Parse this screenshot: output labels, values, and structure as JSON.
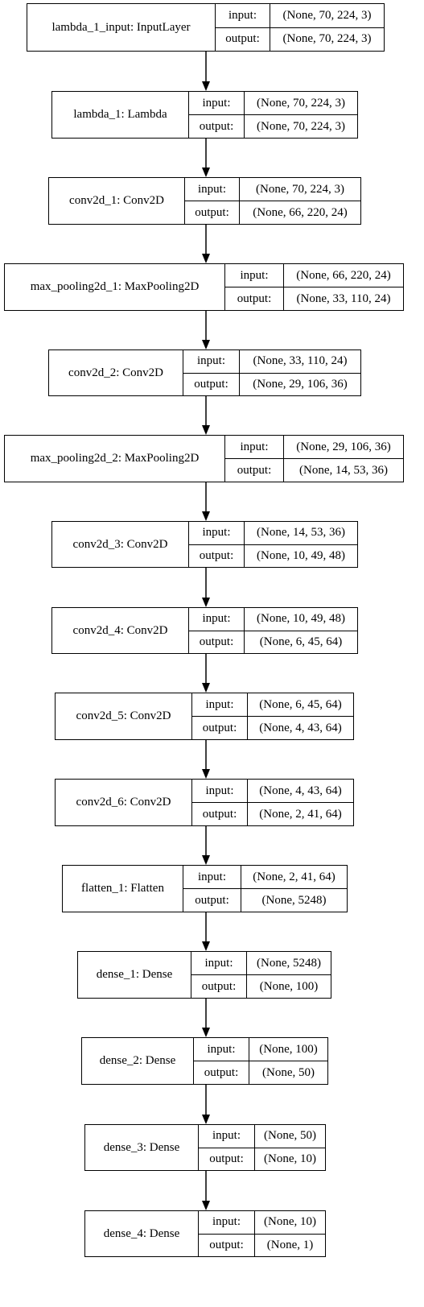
{
  "diagram": {
    "layers": [
      {
        "name": "lambda_1_input: InputLayer",
        "input_label": "input:",
        "output_label": "output:",
        "input": "(None, 70, 224, 3)",
        "output": "(None, 70, 224, 3)"
      },
      {
        "name": "lambda_1: Lambda",
        "input_label": "input:",
        "output_label": "output:",
        "input": "(None, 70, 224, 3)",
        "output": "(None, 70, 224, 3)"
      },
      {
        "name": "conv2d_1: Conv2D",
        "input_label": "input:",
        "output_label": "output:",
        "input": "(None, 70, 224, 3)",
        "output": "(None, 66, 220, 24)"
      },
      {
        "name": "max_pooling2d_1: MaxPooling2D",
        "input_label": "input:",
        "output_label": "output:",
        "input": "(None, 66, 220, 24)",
        "output": "(None, 33, 110, 24)"
      },
      {
        "name": "conv2d_2: Conv2D",
        "input_label": "input:",
        "output_label": "output:",
        "input": "(None, 33, 110, 24)",
        "output": "(None, 29, 106, 36)"
      },
      {
        "name": "max_pooling2d_2: MaxPooling2D",
        "input_label": "input:",
        "output_label": "output:",
        "input": "(None, 29, 106, 36)",
        "output": "(None, 14, 53, 36)"
      },
      {
        "name": "conv2d_3: Conv2D",
        "input_label": "input:",
        "output_label": "output:",
        "input": "(None, 14, 53, 36)",
        "output": "(None, 10, 49, 48)"
      },
      {
        "name": "conv2d_4: Conv2D",
        "input_label": "input:",
        "output_label": "output:",
        "input": "(None, 10, 49, 48)",
        "output": "(None, 6, 45, 64)"
      },
      {
        "name": "conv2d_5: Conv2D",
        "input_label": "input:",
        "output_label": "output:",
        "input": "(None, 6, 45, 64)",
        "output": "(None, 4, 43, 64)"
      },
      {
        "name": "conv2d_6: Conv2D",
        "input_label": "input:",
        "output_label": "output:",
        "input": "(None, 4, 43, 64)",
        "output": "(None, 2, 41, 64)"
      },
      {
        "name": "flatten_1: Flatten",
        "input_label": "input:",
        "output_label": "output:",
        "input": "(None, 2, 41, 64)",
        "output": "(None, 5248)"
      },
      {
        "name": "dense_1: Dense",
        "input_label": "input:",
        "output_label": "output:",
        "input": "(None, 5248)",
        "output": "(None, 100)"
      },
      {
        "name": "dense_2: Dense",
        "input_label": "input:",
        "output_label": "output:",
        "input": "(None, 100)",
        "output": "(None, 50)"
      },
      {
        "name": "dense_3: Dense",
        "input_label": "input:",
        "output_label": "output:",
        "input": "(None, 50)",
        "output": "(None, 10)"
      },
      {
        "name": "dense_4: Dense",
        "input_label": "input:",
        "output_label": "output:",
        "input": "(None, 10)",
        "output": "(None, 1)"
      }
    ]
  }
}
